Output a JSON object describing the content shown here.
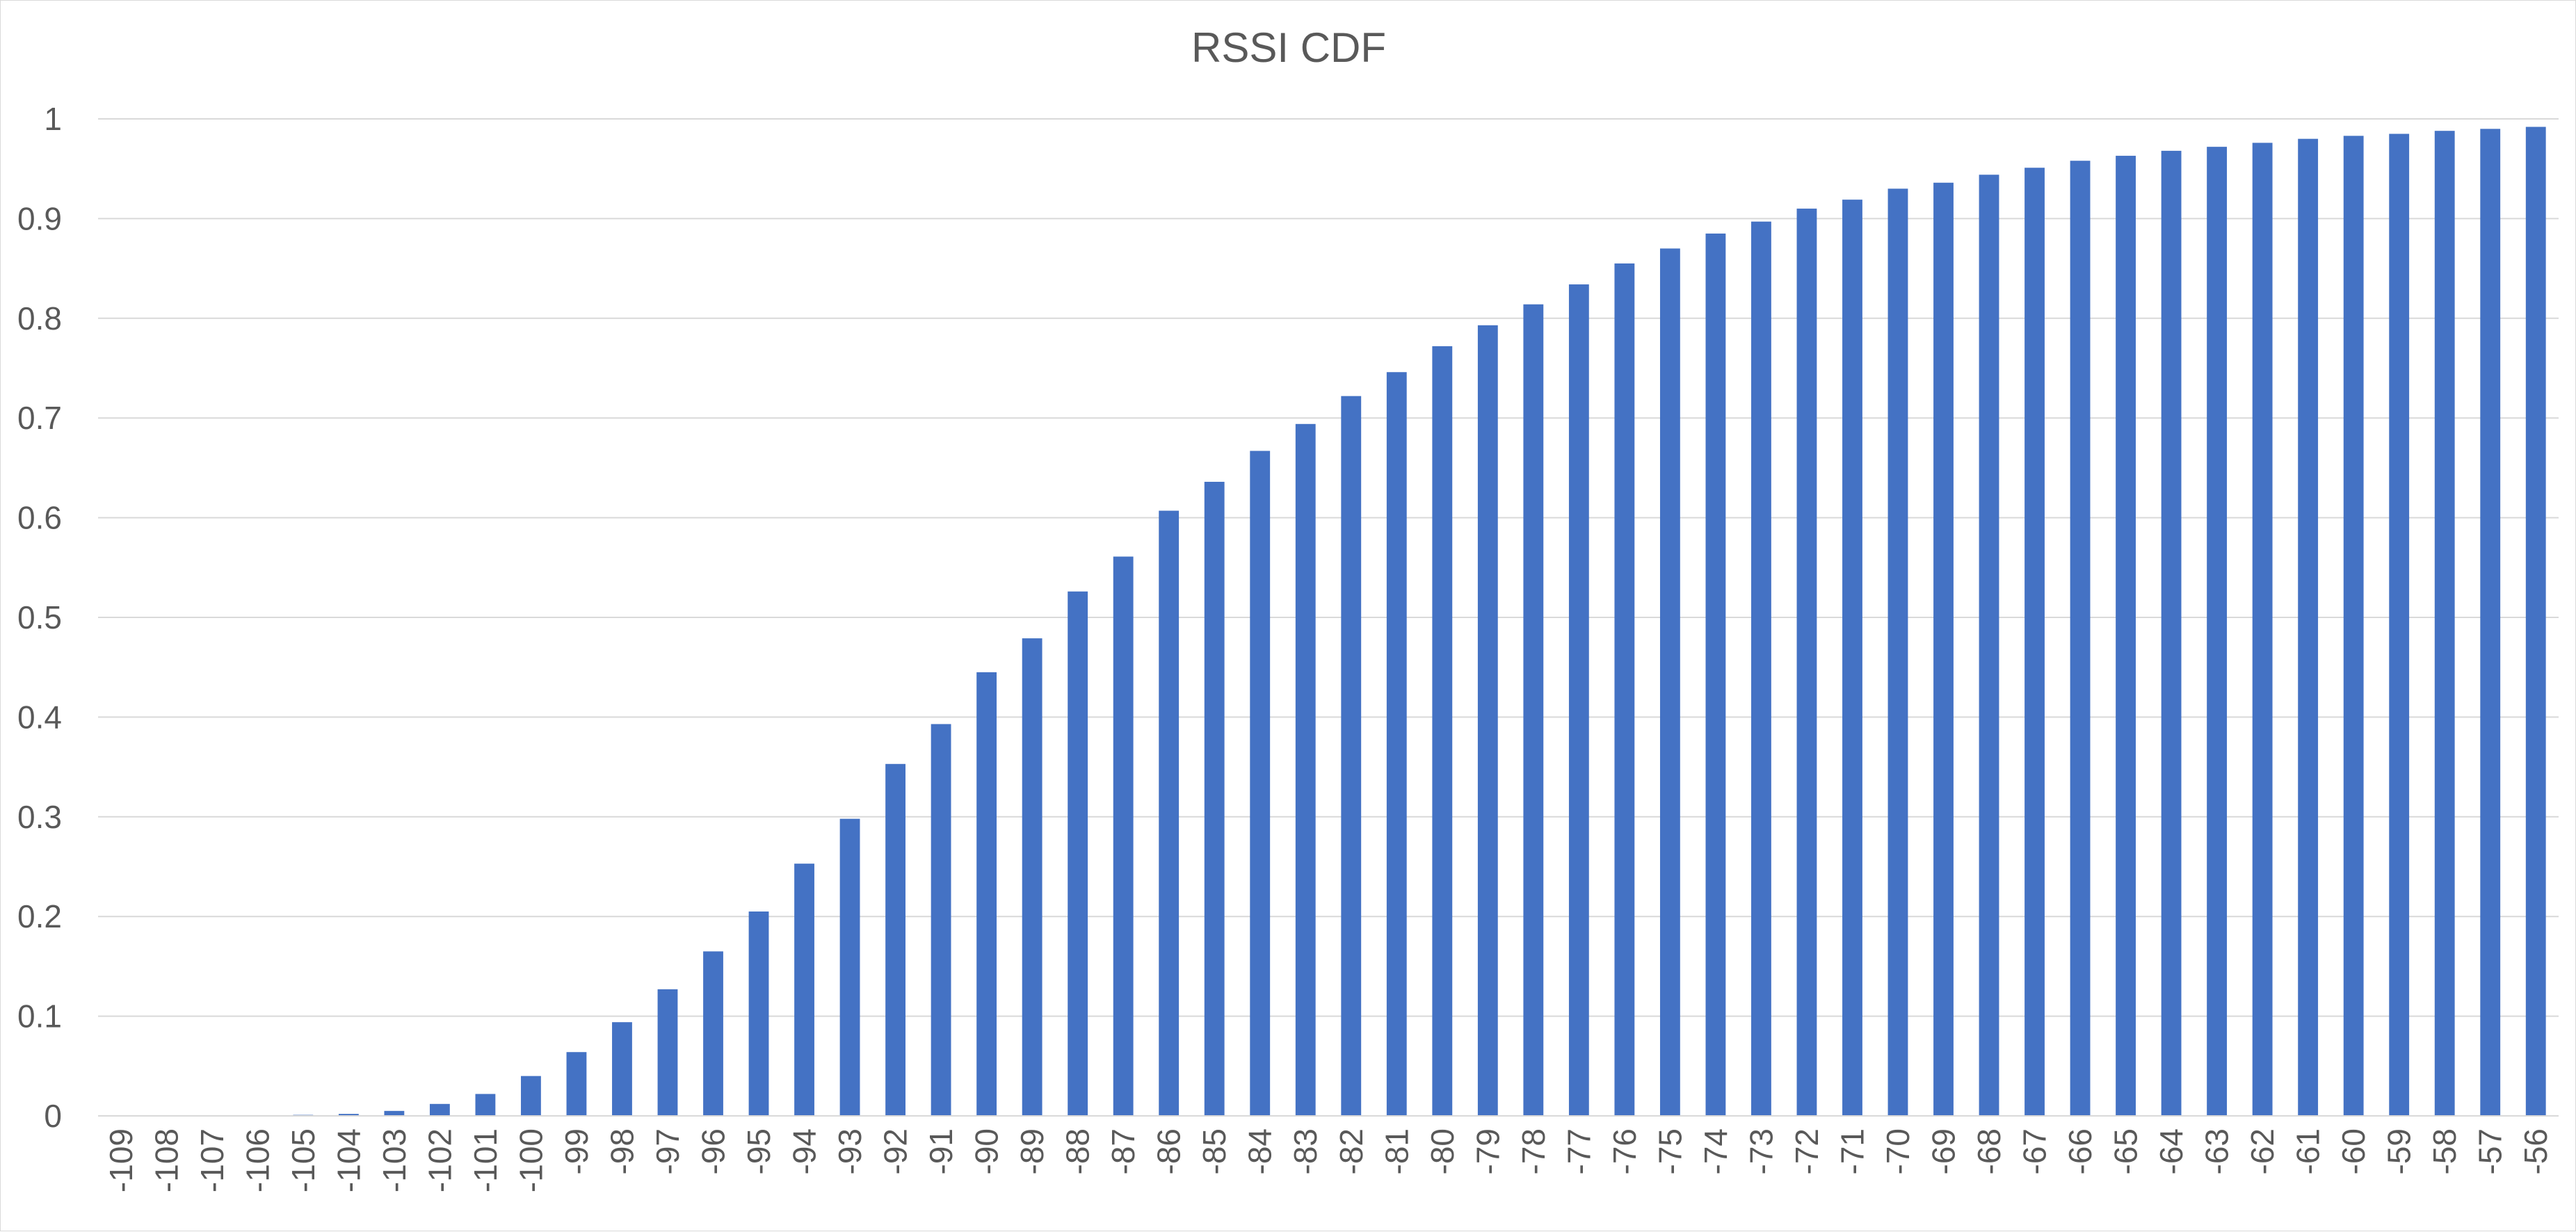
{
  "chart_data": {
    "type": "bar",
    "title": "RSSI CDF",
    "xlabel": "",
    "ylabel": "",
    "ylim": [
      0,
      1
    ],
    "yticks": [
      0,
      0.1,
      0.2,
      0.3,
      0.4,
      0.5,
      0.6,
      0.7,
      0.8,
      0.9,
      1
    ],
    "ytick_labels": [
      "0",
      "0.1",
      "0.2",
      "0.3",
      "0.4",
      "0.5",
      "0.6",
      "0.7",
      "0.8",
      "0.9",
      "1"
    ],
    "grid": true,
    "legend": "none",
    "bar_color": "#4472C4",
    "categories": [
      "-109",
      "-108",
      "-107",
      "-106",
      "-105",
      "-104",
      "-103",
      "-102",
      "-101",
      "-100",
      "-99",
      "-98",
      "-97",
      "-96",
      "-95",
      "-94",
      "-93",
      "-92",
      "-91",
      "-90",
      "-89",
      "-88",
      "-87",
      "-86",
      "-85",
      "-84",
      "-83",
      "-82",
      "-81",
      "-80",
      "-79",
      "-78",
      "-77",
      "-76",
      "-75",
      "-74",
      "-73",
      "-72",
      "-71",
      "-70",
      "-69",
      "-68",
      "-67",
      "-66",
      "-65",
      "-64",
      "-63",
      "-62",
      "-61",
      "-60",
      "-59",
      "-58",
      "-57",
      "-56"
    ],
    "values": [
      0,
      0,
      0,
      0,
      0.001,
      0.002,
      0.005,
      0.012,
      0.022,
      0.04,
      0.064,
      0.094,
      0.127,
      0.165,
      0.205,
      0.253,
      0.298,
      0.353,
      0.393,
      0.445,
      0.479,
      0.526,
      0.561,
      0.607,
      0.636,
      0.667,
      0.694,
      0.722,
      0.746,
      0.772,
      0.793,
      0.814,
      0.834,
      0.855,
      0.87,
      0.885,
      0.897,
      0.91,
      0.919,
      0.93,
      0.936,
      0.944,
      0.951,
      0.958,
      0.963,
      0.968,
      0.972,
      0.976,
      0.98,
      0.983,
      0.985,
      0.988,
      0.99,
      0.992
    ]
  }
}
